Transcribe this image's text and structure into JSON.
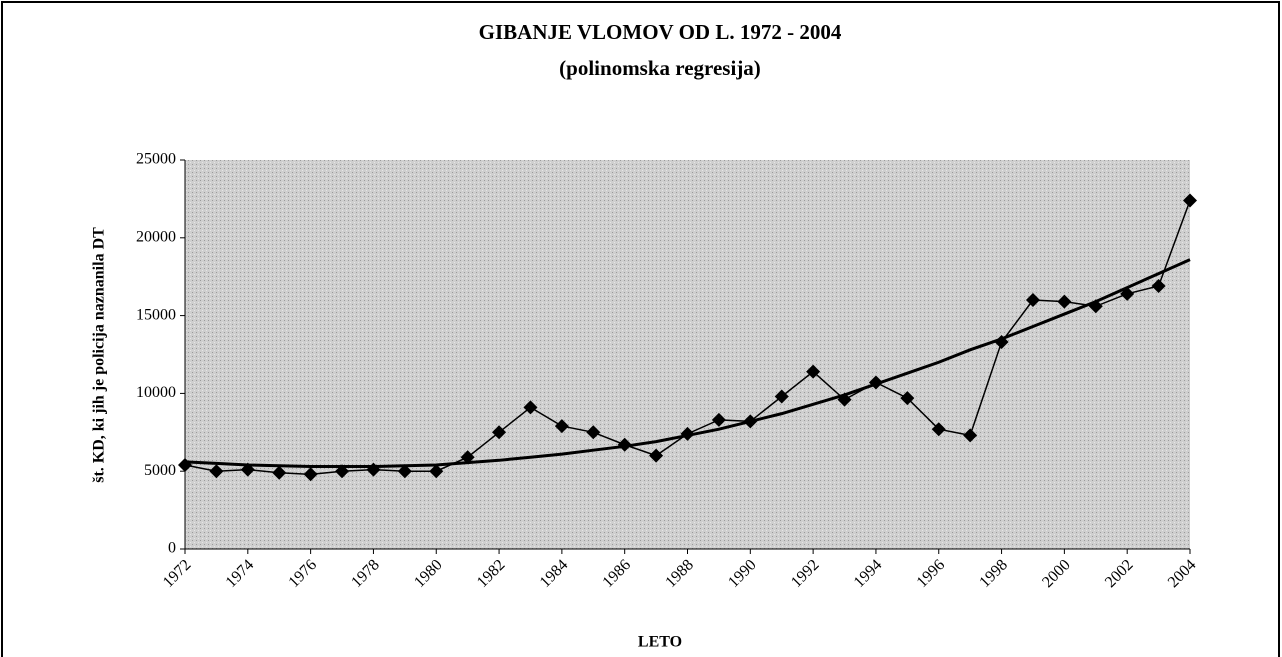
{
  "chart_data": {
    "type": "line",
    "title": "GIBANJE VLOMOV OD L. 1972 - 2004",
    "subtitle": "(polinomska regresija)",
    "x_label": "LETO",
    "y_label": "št. KD, ki jih je policija naznanila DT",
    "x": [
      1972,
      1973,
      1974,
      1975,
      1976,
      1977,
      1978,
      1979,
      1980,
      1981,
      1982,
      1983,
      1984,
      1985,
      1986,
      1987,
      1988,
      1989,
      1990,
      1991,
      1992,
      1993,
      1994,
      1995,
      1996,
      1997,
      1998,
      1999,
      2000,
      2001,
      2002,
      2003,
      2004
    ],
    "series": [
      {
        "color": "#000000",
        "marker": "diamond",
        "values": [
          5400,
          5000,
          5100,
          4900,
          4800,
          5000,
          5100,
          5000,
          5000,
          5900,
          7500,
          9100,
          7900,
          7500,
          6700,
          6000,
          7400,
          8300,
          8200,
          9800,
          11400,
          9600,
          10700,
          9700,
          7700,
          7300,
          13300,
          16000,
          15900,
          15600,
          16400,
          16900,
          22400
        ]
      },
      {
        "color": "#000000",
        "marker": "none",
        "values": [
          5600,
          5500,
          5400,
          5350,
          5300,
          5300,
          5300,
          5350,
          5400,
          5550,
          5700,
          5900,
          6100,
          6350,
          6600,
          6900,
          7300,
          7700,
          8200,
          8700,
          9300,
          9900,
          10600,
          11300,
          12000,
          12800,
          13500,
          14300,
          15100,
          15900,
          16800,
          17700,
          18600
        ]
      }
    ],
    "xlim": [
      1972,
      2004
    ],
    "xticks": [
      1972,
      1974,
      1976,
      1978,
      1980,
      1982,
      1984,
      1986,
      1988,
      1990,
      1992,
      1994,
      1996,
      1998,
      2000,
      2002,
      2004
    ],
    "ylim": [
      0,
      25000
    ],
    "yticks": [
      0,
      5000,
      10000,
      15000,
      20000,
      25000
    ],
    "grid": false
  }
}
